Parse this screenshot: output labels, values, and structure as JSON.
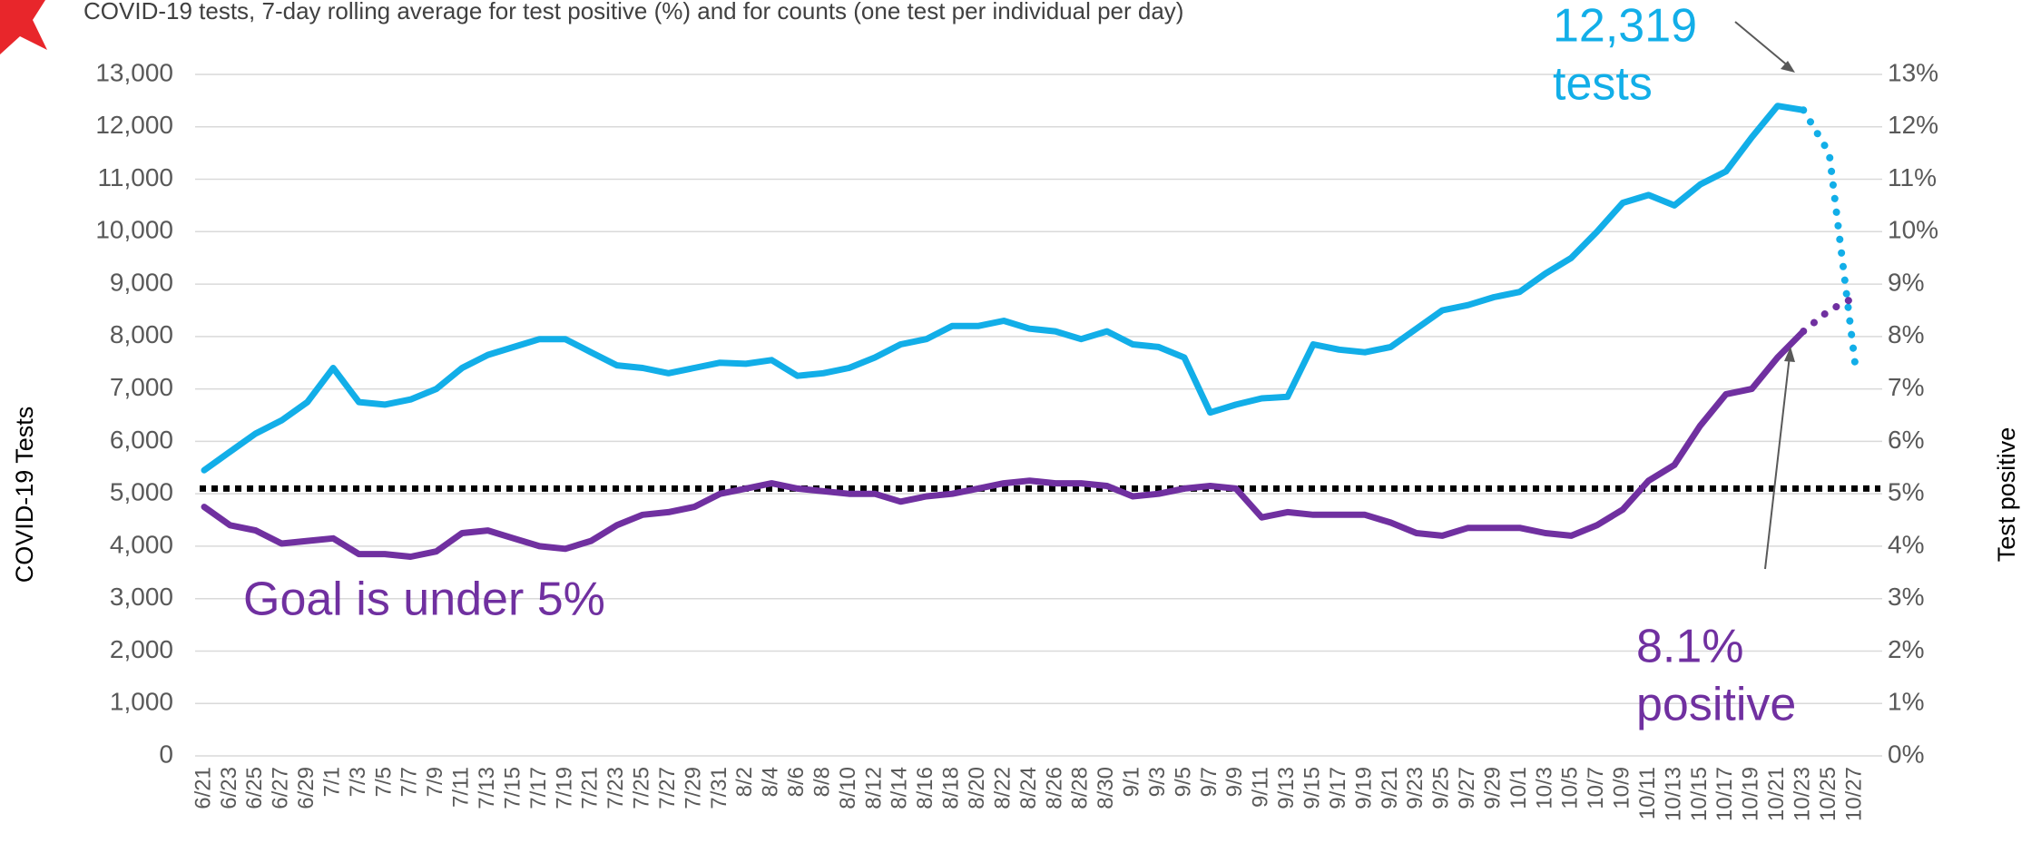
{
  "chart_data": {
    "type": "line",
    "title": "COVID-19 tests, 7-day rolling average for test positive (%) and for counts (one test per individual per day)",
    "y_label": "COVID-19 Tests",
    "y2_label": "Test positive",
    "categories": [
      "6/21",
      "6/23",
      "6/25",
      "6/27",
      "6/29",
      "7/1",
      "7/3",
      "7/5",
      "7/7",
      "7/9",
      "7/11",
      "7/13",
      "7/15",
      "7/17",
      "7/19",
      "7/21",
      "7/23",
      "7/25",
      "7/27",
      "7/29",
      "7/31",
      "8/2",
      "8/4",
      "8/6",
      "8/8",
      "8/10",
      "8/12",
      "8/14",
      "8/16",
      "8/18",
      "8/20",
      "8/22",
      "8/24",
      "8/26",
      "8/28",
      "8/30",
      "9/1",
      "9/3",
      "9/5",
      "9/7",
      "9/9",
      "9/11",
      "9/13",
      "9/15",
      "9/17",
      "9/19",
      "9/21",
      "9/23",
      "9/25",
      "9/27",
      "9/29",
      "10/1",
      "10/3",
      "10/5",
      "10/7",
      "10/9",
      "10/11",
      "10/13",
      "10/15",
      "10/17",
      "10/19",
      "10/21",
      "10/23",
      "10/25",
      "10/27"
    ],
    "series": [
      {
        "color": "#12aee8",
        "style": "solid",
        "values": [
          5450,
          5800,
          6150,
          6400,
          6750,
          7400,
          6750,
          6700,
          6800,
          7000,
          7400,
          7650,
          7800,
          7950,
          7950,
          7700,
          7450,
          7400,
          7300,
          7400,
          7500,
          7480,
          7550,
          7250,
          7300,
          7400,
          7600,
          7850,
          7950,
          8200,
          8200,
          8300,
          8150,
          8100,
          7950,
          8100,
          7850,
          7800,
          7600,
          6550,
          6700,
          6820,
          6850,
          7850,
          7750,
          7700,
          7800,
          8150,
          8500,
          8600,
          8750,
          8850,
          9200,
          9500,
          10000,
          10550,
          10700,
          10500,
          10900,
          11150,
          11800,
          12400,
          12319,
          null,
          null
        ]
      },
      {
        "color": "#12aee8",
        "style": "dotted",
        "values": [
          null,
          null,
          null,
          null,
          null,
          null,
          null,
          null,
          null,
          null,
          null,
          null,
          null,
          null,
          null,
          null,
          null,
          null,
          null,
          null,
          null,
          null,
          null,
          null,
          null,
          null,
          null,
          null,
          null,
          null,
          null,
          null,
          null,
          null,
          null,
          null,
          null,
          null,
          null,
          null,
          null,
          null,
          null,
          null,
          null,
          null,
          null,
          null,
          null,
          null,
          null,
          null,
          null,
          null,
          null,
          null,
          null,
          null,
          null,
          null,
          null,
          null,
          12319,
          11500,
          7500
        ]
      },
      {
        "color": "#7030a0",
        "style": "solid",
        "axis": "y2",
        "values": [
          4.75,
          4.4,
          4.3,
          4.05,
          4.1,
          4.15,
          3.85,
          3.85,
          3.8,
          3.9,
          4.25,
          4.3,
          4.15,
          4.0,
          3.95,
          4.1,
          4.4,
          4.6,
          4.65,
          4.75,
          5.0,
          5.1,
          5.2,
          5.1,
          5.05,
          5.0,
          5.0,
          4.85,
          4.95,
          5.0,
          5.1,
          5.2,
          5.25,
          5.2,
          5.2,
          5.15,
          4.95,
          5.0,
          5.1,
          5.15,
          5.1,
          4.55,
          4.65,
          4.6,
          4.6,
          4.6,
          4.45,
          4.25,
          4.2,
          4.35,
          4.35,
          4.35,
          4.25,
          4.2,
          4.4,
          4.7,
          5.25,
          5.55,
          6.3,
          6.9,
          7.0,
          7.6,
          8.1,
          null,
          null
        ]
      },
      {
        "color": "#7030a0",
        "style": "dotted",
        "axis": "y2",
        "values": [
          null,
          null,
          null,
          null,
          null,
          null,
          null,
          null,
          null,
          null,
          null,
          null,
          null,
          null,
          null,
          null,
          null,
          null,
          null,
          null,
          null,
          null,
          null,
          null,
          null,
          null,
          null,
          null,
          null,
          null,
          null,
          null,
          null,
          null,
          null,
          null,
          null,
          null,
          null,
          null,
          null,
          null,
          null,
          null,
          null,
          null,
          null,
          null,
          null,
          null,
          null,
          null,
          null,
          null,
          null,
          null,
          null,
          null,
          null,
          null,
          null,
          null,
          8.1,
          8.5,
          8.75
        ]
      }
    ],
    "ylim": [
      0,
      13000
    ],
    "yticks": [
      {
        "value": 0,
        "label": "0"
      },
      {
        "value": 1000,
        "label": "1,000"
      },
      {
        "value": 2000,
        "label": "2,000"
      },
      {
        "value": 3000,
        "label": "3,000"
      },
      {
        "value": 4000,
        "label": "4,000"
      },
      {
        "value": 5000,
        "label": "5,000"
      },
      {
        "value": 6000,
        "label": "6,000"
      },
      {
        "value": 7000,
        "label": "7,000"
      },
      {
        "value": 8000,
        "label": "8,000"
      },
      {
        "value": 9000,
        "label": "9,000"
      },
      {
        "value": 10000,
        "label": "10,000"
      },
      {
        "value": 11000,
        "label": "11,000"
      },
      {
        "value": 12000,
        "label": "12,000"
      },
      {
        "value": 13000,
        "label": "13,000"
      }
    ],
    "y2lim": [
      0,
      13
    ],
    "y2ticks": [
      {
        "value": 0,
        "label": "0%"
      },
      {
        "value": 1,
        "label": "1%"
      },
      {
        "value": 2,
        "label": "2%"
      },
      {
        "value": 3,
        "label": "3%"
      },
      {
        "value": 4,
        "label": "4%"
      },
      {
        "value": 5,
        "label": "5%"
      },
      {
        "value": 6,
        "label": "6%"
      },
      {
        "value": 7,
        "label": "7%"
      },
      {
        "value": 8,
        "label": "8%"
      },
      {
        "value": 9,
        "label": "9%"
      },
      {
        "value": 10,
        "label": "10%"
      },
      {
        "value": 11,
        "label": "11%"
      },
      {
        "value": 12,
        "label": "12%"
      },
      {
        "value": 13,
        "label": "13%"
      }
    ],
    "grid": true,
    "goal_line": {
      "value": 5.1,
      "axis": "y2",
      "color": "#000000"
    },
    "annotations": [
      {
        "lines": [
          "12,319",
          "tests"
        ],
        "color": "#12aee8"
      },
      {
        "lines": [
          "8.1%",
          "positive"
        ],
        "color": "#7030a0"
      },
      {
        "lines": [
          "Goal is under 5%"
        ],
        "color": "#7030a0"
      }
    ]
  }
}
